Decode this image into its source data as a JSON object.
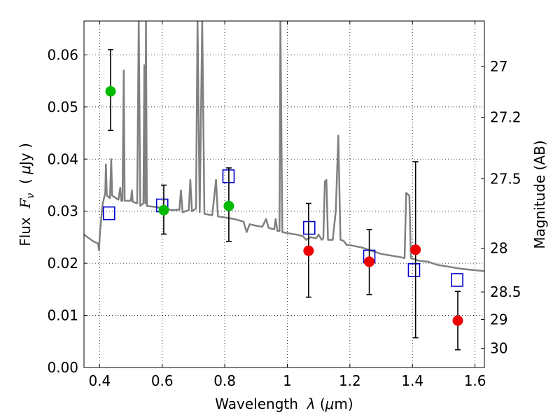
{
  "chart_data": {
    "type": "scatter",
    "xlabel_parts": [
      "Wavelength  ",
      "λ",
      " (",
      "μ",
      "m)"
    ],
    "ylabel_parts": [
      "Flux  ",
      "F",
      "ν",
      "  ( ",
      "μ",
      "Jy )"
    ],
    "y2label": "Magnitude (AB)",
    "xlim": [
      0.35,
      1.63
    ],
    "ylim": [
      0.0,
      0.0665
    ],
    "x_ticks": [
      0.4,
      0.6,
      0.8,
      1.0,
      1.2,
      1.4,
      1.6
    ],
    "x_tick_labels": [
      "0.4",
      "0.6",
      "0.8",
      "1",
      "1.2",
      "1.4",
      "1.6"
    ],
    "y_ticks": [
      0.0,
      0.01,
      0.02,
      0.03,
      0.04,
      0.05,
      0.06
    ],
    "y_tick_labels": [
      "0.00",
      "0.01",
      "0.02",
      "0.03",
      "0.04",
      "0.05",
      "0.06"
    ],
    "y2_ticks": [
      {
        "label": "27",
        "flux": 0.0578
      },
      {
        "label": "27.2",
        "flux": 0.048
      },
      {
        "label": "27.5",
        "flux": 0.0362
      },
      {
        "label": "28",
        "flux": 0.0229
      },
      {
        "label": "28.5",
        "flux": 0.0145
      },
      {
        "label": "29",
        "flux": 0.0092
      },
      {
        "label": "30",
        "flux": 0.0037
      }
    ],
    "grid": true,
    "colors": {
      "model": "#808080",
      "green_points": "#00bb00",
      "red_points": "#ee0000",
      "model_boxes": "#0000cc",
      "errorbars": "#000000"
    },
    "model_spectrum": [
      [
        0.35,
        0.0255
      ],
      [
        0.38,
        0.0242
      ],
      [
        0.395,
        0.0238
      ],
      [
        0.398,
        0.0225
      ],
      [
        0.401,
        0.026
      ],
      [
        0.41,
        0.0315
      ],
      [
        0.418,
        0.0335
      ],
      [
        0.42,
        0.039
      ],
      [
        0.423,
        0.033
      ],
      [
        0.433,
        0.0325
      ],
      [
        0.437,
        0.04
      ],
      [
        0.44,
        0.033
      ],
      [
        0.46,
        0.0322
      ],
      [
        0.466,
        0.0345
      ],
      [
        0.469,
        0.032
      ],
      [
        0.473,
        0.032
      ],
      [
        0.477,
        0.057
      ],
      [
        0.48,
        0.032
      ],
      [
        0.5,
        0.032
      ],
      [
        0.503,
        0.034
      ],
      [
        0.506,
        0.0318
      ],
      [
        0.52,
        0.0315
      ],
      [
        0.525,
        0.0665
      ],
      [
        0.53,
        0.031
      ],
      [
        0.54,
        0.0315
      ],
      [
        0.543,
        0.058
      ],
      [
        0.546,
        0.0315
      ],
      [
        0.548,
        0.0665
      ],
      [
        0.551,
        0.031
      ],
      [
        0.58,
        0.0308
      ],
      [
        0.61,
        0.0305
      ],
      [
        0.63,
        0.0302
      ],
      [
        0.655,
        0.0303
      ],
      [
        0.66,
        0.034
      ],
      [
        0.665,
        0.0298
      ],
      [
        0.685,
        0.0302
      ],
      [
        0.69,
        0.036
      ],
      [
        0.695,
        0.03
      ],
      [
        0.708,
        0.0305
      ],
      [
        0.713,
        0.0665
      ],
      [
        0.72,
        0.0298
      ],
      [
        0.728,
        0.0665
      ],
      [
        0.735,
        0.0295
      ],
      [
        0.76,
        0.0292
      ],
      [
        0.772,
        0.036
      ],
      [
        0.778,
        0.029
      ],
      [
        0.8,
        0.0288
      ],
      [
        0.83,
        0.0285
      ],
      [
        0.86,
        0.028
      ],
      [
        0.87,
        0.026
      ],
      [
        0.88,
        0.0275
      ],
      [
        0.9,
        0.0272
      ],
      [
        0.92,
        0.027
      ],
      [
        0.932,
        0.0285
      ],
      [
        0.94,
        0.0268
      ],
      [
        0.958,
        0.0265
      ],
      [
        0.963,
        0.0285
      ],
      [
        0.968,
        0.0262
      ],
      [
        0.975,
        0.0262
      ],
      [
        0.978,
        0.0665
      ],
      [
        0.984,
        0.026
      ],
      [
        1.0,
        0.0258
      ],
      [
        1.03,
        0.0255
      ],
      [
        1.05,
        0.0252
      ],
      [
        1.06,
        0.0245
      ],
      [
        1.075,
        0.025
      ],
      [
        1.092,
        0.0248
      ],
      [
        1.1,
        0.0255
      ],
      [
        1.11,
        0.0245
      ],
      [
        1.115,
        0.0248
      ],
      [
        1.12,
        0.0357
      ],
      [
        1.125,
        0.036
      ],
      [
        1.13,
        0.0245
      ],
      [
        1.145,
        0.0245
      ],
      [
        1.155,
        0.03
      ],
      [
        1.163,
        0.0445
      ],
      [
        1.17,
        0.0245
      ],
      [
        1.18,
        0.0243
      ],
      [
        1.19,
        0.0235
      ],
      [
        1.2,
        0.0235
      ],
      [
        1.24,
        0.023
      ],
      [
        1.28,
        0.0222
      ],
      [
        1.3,
        0.0218
      ],
      [
        1.33,
        0.0215
      ],
      [
        1.36,
        0.0212
      ],
      [
        1.375,
        0.021
      ],
      [
        1.38,
        0.0335
      ],
      [
        1.39,
        0.033
      ],
      [
        1.395,
        0.021
      ],
      [
        1.42,
        0.0205
      ],
      [
        1.45,
        0.0203
      ],
      [
        1.48,
        0.0197
      ],
      [
        1.52,
        0.0193
      ],
      [
        1.55,
        0.019
      ],
      [
        1.58,
        0.0188
      ],
      [
        1.63,
        0.0185
      ]
    ],
    "green_points": [
      {
        "x": 0.435,
        "y": 0.053,
        "yerr_low": 0.0455,
        "yerr_high": 0.061
      },
      {
        "x": 0.605,
        "y": 0.0302,
        "yerr_low": 0.0256,
        "yerr_high": 0.035
      },
      {
        "x": 0.813,
        "y": 0.031,
        "yerr_low": 0.0242,
        "yerr_high": 0.0383
      }
    ],
    "red_points": [
      {
        "x": 1.068,
        "y": 0.0224,
        "yerr_low": 0.0135,
        "yerr_high": 0.0315
      },
      {
        "x": 1.262,
        "y": 0.0203,
        "yerr_low": 0.014,
        "yerr_high": 0.0265
      },
      {
        "x": 1.41,
        "y": 0.0226,
        "yerr_low": 0.0057,
        "yerr_high": 0.0395
      },
      {
        "x": 1.545,
        "y": 0.009,
        "yerr_low": 0.0034,
        "yerr_high": 0.0146
      }
    ],
    "model_boxes": [
      {
        "x": 0.43,
        "y": 0.0296
      },
      {
        "x": 0.6,
        "y": 0.0311
      },
      {
        "x": 0.812,
        "y": 0.0367
      },
      {
        "x": 1.07,
        "y": 0.0268
      },
      {
        "x": 1.262,
        "y": 0.0213
      },
      {
        "x": 1.405,
        "y": 0.0187
      },
      {
        "x": 1.543,
        "y": 0.0168
      }
    ]
  }
}
